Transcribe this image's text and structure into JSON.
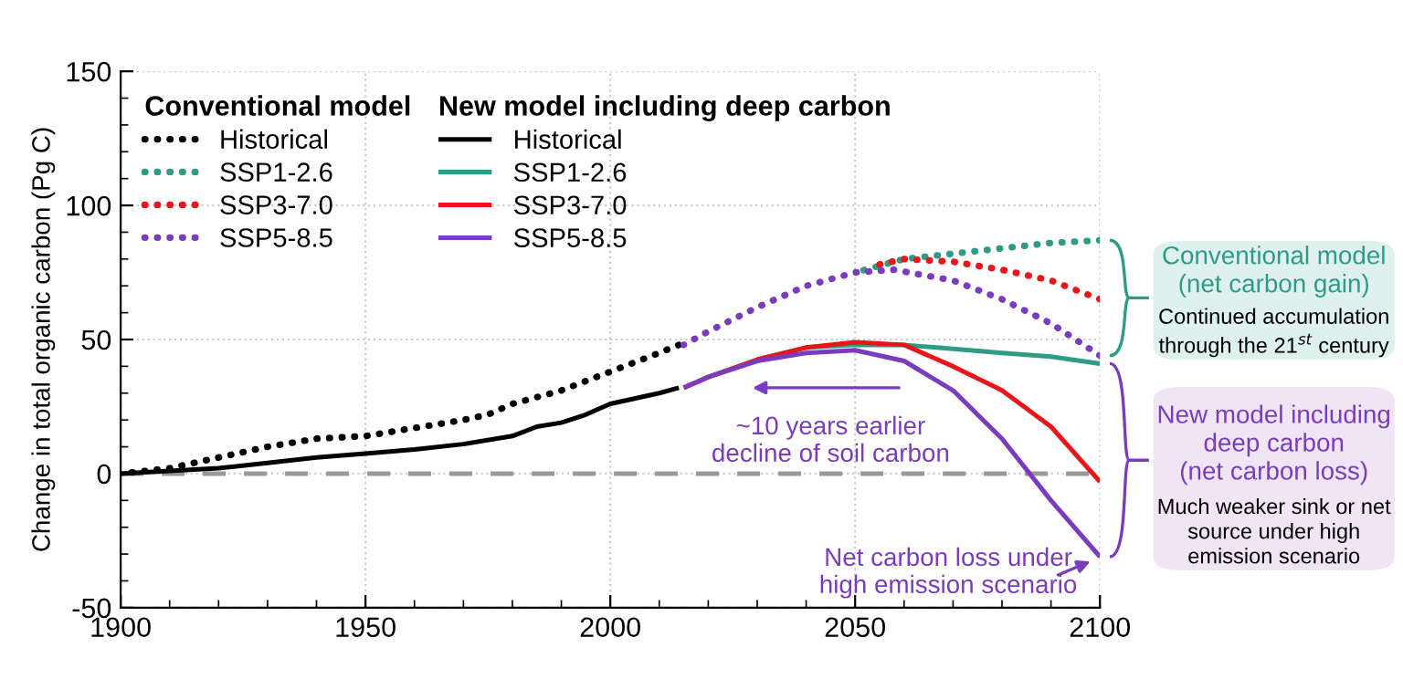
{
  "chart_data": {
    "type": "line",
    "ylabel": "Change in total organic carbon (Pg C)",
    "xlim": [
      1900,
      2100
    ],
    "xticks": [
      1900,
      1950,
      2000,
      2050,
      2100
    ],
    "ylim": [
      -50,
      150
    ],
    "yticks": [
      -50,
      0,
      50,
      100,
      150
    ],
    "grid": true,
    "legend": "top left",
    "series": [
      {
        "name": "Historical",
        "color": "#000000",
        "line_style": "dotted",
        "x": [
          1900,
          1910,
          1920,
          1930,
          1940,
          1950,
          1960,
          1970,
          1975,
          1980,
          1990,
          2000,
          2010,
          2014
        ],
        "values": [
          0,
          2,
          6,
          10,
          13,
          14,
          17,
          20,
          22,
          26,
          31,
          38,
          45,
          48
        ]
      },
      {
        "name": "SSP1-2.6",
        "color": "#2e9c84",
        "line_style": "dotted",
        "x": [
          2050,
          2060,
          2070,
          2080,
          2090,
          2100
        ],
        "values": [
          75,
          80,
          82,
          84,
          86,
          87
        ]
      },
      {
        "name": "SSP3-7.0",
        "color": "#e8161b",
        "line_style": "dotted",
        "x": [
          2055,
          2060,
          2070,
          2080,
          2090,
          2100
        ],
        "values": [
          78,
          80,
          79,
          76,
          72,
          65
        ]
      },
      {
        "name": "SSP5-8.5",
        "color": "#7a3bbf",
        "line_style": "dotted",
        "x": [
          2015,
          2020,
          2030,
          2040,
          2050,
          2058,
          2070,
          2080,
          2090,
          2100
        ],
        "values": [
          48,
          53,
          62,
          70,
          75,
          76,
          72,
          65,
          56,
          44
        ]
      },
      {
        "name": "Historical",
        "color": "#000000",
        "line_style": "solid",
        "x": [
          1900,
          1910,
          1920,
          1930,
          1940,
          1950,
          1960,
          1970,
          1980,
          1985,
          1990,
          1995,
          2000,
          2010,
          2014
        ],
        "values": [
          0,
          1,
          2,
          4,
          6,
          7.5,
          9,
          11,
          14,
          17.5,
          19,
          22,
          26,
          30,
          32
        ]
      },
      {
        "name": "SSP1-2.6",
        "color": "#2e9c84",
        "line_style": "solid",
        "x": [
          2030,
          2040,
          2050,
          2060,
          2070,
          2080,
          2090,
          2100
        ],
        "values": [
          42.5,
          47,
          48,
          48,
          46.5,
          45,
          43.6,
          41
        ]
      },
      {
        "name": "SSP3-7.0",
        "color": "#e8161b",
        "line_style": "solid",
        "x": [
          2015,
          2020,
          2030,
          2040,
          2050,
          2060,
          2070,
          2080,
          2090,
          2100
        ],
        "values": [
          32,
          36,
          42.5,
          47,
          49,
          48,
          40,
          31,
          17.5,
          -3
        ]
      },
      {
        "name": "SSP5-8.5",
        "color": "#7a3bbf",
        "line_style": "solid",
        "x": [
          2015,
          2020,
          2030,
          2040,
          2050,
          2060,
          2070,
          2080,
          2090,
          2100
        ],
        "values": [
          32,
          36,
          42,
          45,
          46,
          42,
          31,
          13,
          -10,
          -31
        ]
      }
    ],
    "ref_lines": [
      {
        "axis": "y",
        "value": 0,
        "color": "#999999",
        "line_style": "dashed"
      }
    ],
    "annotations": [
      "Conventional model",
      "New model including deep carbon",
      "~10 years earlier\ndecline of soil carbon",
      {
        "text": "Net carbon loss under\nhigh emission scenario",
        "x": 2100,
        "y": -31
      },
      "Conventional model\n(net carbon gain)",
      "Continued accumulation\nthrough the 21$^{st}$ century",
      "New model including\ndeep carbon\n(net carbon loss)",
      "Much weaker sink or net\nsource under high\nemission scenario"
    ]
  }
}
